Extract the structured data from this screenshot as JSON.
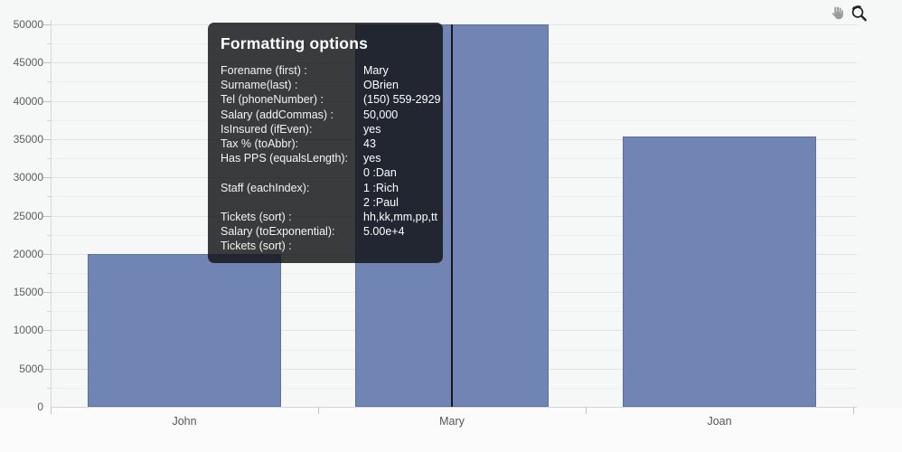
{
  "page": {
    "background": "#f6f7f7"
  },
  "toolbar": {
    "icons": [
      {
        "name": "pan-hand-icon",
        "color": "#9b9b9b"
      },
      {
        "name": "reset-zoom-icon",
        "color": "#222222"
      }
    ]
  },
  "chart_data": {
    "type": "bar",
    "title": "",
    "xlabel": "",
    "ylabel": "",
    "categories": [
      "John",
      "Mary",
      "Joan"
    ],
    "values": [
      20000,
      50000,
      35400
    ],
    "ylim": [
      0,
      50000
    ],
    "ytick_step": 5000,
    "minor_tick_step": 2500,
    "ytick_labels": [
      "0",
      "5000",
      "10000",
      "15000",
      "20000",
      "25000",
      "30000",
      "35000",
      "40000",
      "45000",
      "50000"
    ],
    "grid": true,
    "legend": "none",
    "bar_color": "#7085B4",
    "bar_border_color": "#5d6f9d",
    "crosshair_category": "Mary",
    "crosshair_color": "#17171c"
  },
  "tooltip": {
    "title": "Formatting options",
    "rows": [
      {
        "label": "Forename (first) :",
        "value": "Mary"
      },
      {
        "label": "Surname(last) :",
        "value": "OBrien"
      },
      {
        "label": "Tel (phoneNumber) :",
        "value": "(150) 559-2929"
      },
      {
        "label": "Salary (addCommas) :",
        "value": "50,000"
      },
      {
        "label": "IsInsured (ifEven):",
        "value": "yes"
      },
      {
        "label": "Tax % (toAbbr):",
        "value": "43"
      },
      {
        "label": "Has PPS (equalsLength):",
        "value": "yes"
      },
      {
        "label": "",
        "value": "0 :Dan"
      },
      {
        "label": "Staff (eachIndex):",
        "value": "1 :Rich"
      },
      {
        "label": "",
        "value": "2 :Paul"
      },
      {
        "label": "Tickets (sort) :",
        "value": "hh,kk,mm,pp,tt"
      },
      {
        "label": "Salary (toExponential):",
        "value": "5.00e+4"
      },
      {
        "label": "Tickets (sort) :",
        "value": ""
      }
    ]
  }
}
